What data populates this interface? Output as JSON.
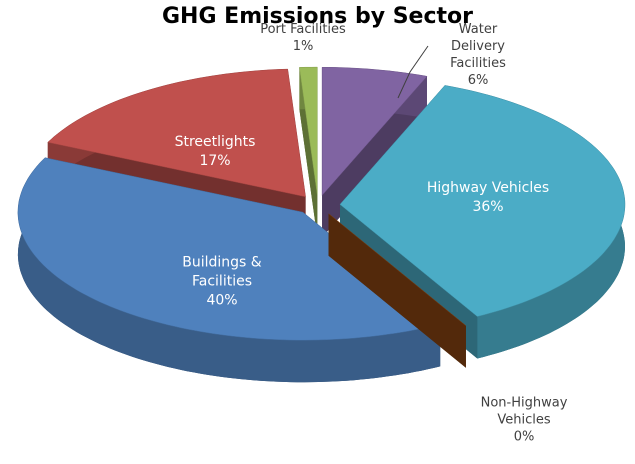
{
  "chart_data": {
    "type": "pie",
    "title": "GHG Emissions by Sector",
    "categories": [
      "Water Delivery Facilities",
      "Highway Vehicles",
      "Non-Highway Vehicles",
      "Buildings & Facilities",
      "Streetlights",
      "Port Facilities"
    ],
    "values": [
      6,
      36,
      0,
      40,
      17,
      1
    ],
    "value_labels": [
      "6%",
      "36%",
      "0%",
      "40%",
      "17%",
      "1%"
    ],
    "colors": [
      "#8064a2",
      "#4bacc6",
      "#8b4513",
      "#4f81bd",
      "#c0504d",
      "#9bbb59"
    ]
  }
}
